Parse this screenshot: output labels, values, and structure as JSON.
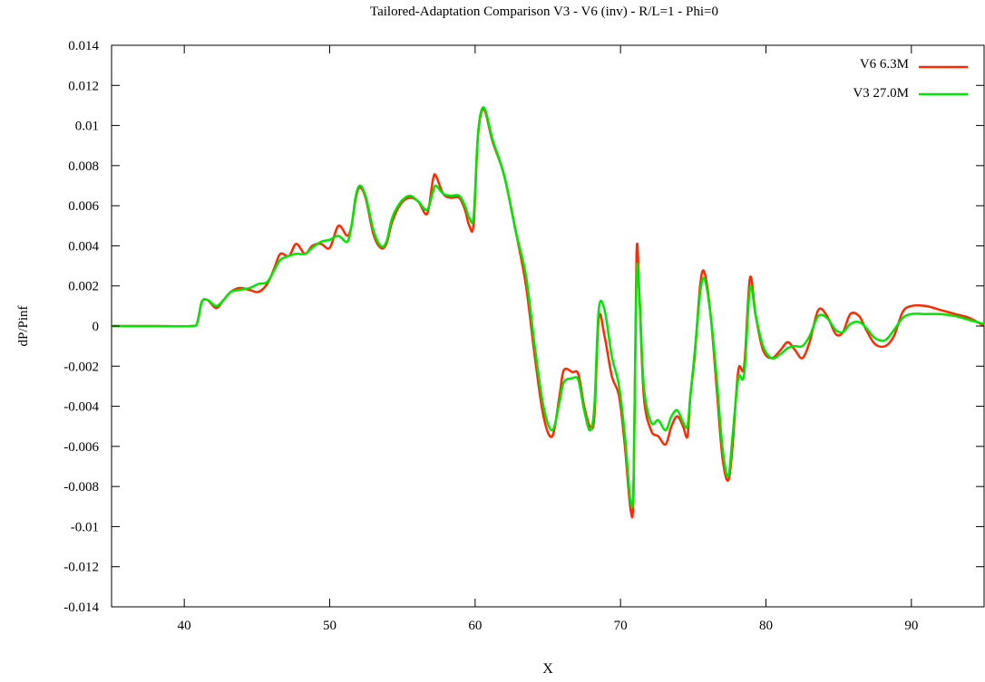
{
  "chart_data": {
    "type": "line",
    "title": "Tailored-Adaptation Comparison V3 - V6 (inv) - R/L=1 - Phi=0",
    "xlabel": "X",
    "ylabel": "dP/Pinf",
    "xlim": [
      35,
      95
    ],
    "ylim": [
      -0.014,
      0.014
    ],
    "xticks": [
      40,
      50,
      60,
      70,
      80,
      90
    ],
    "yticks": [
      -0.014,
      -0.012,
      -0.01,
      -0.008,
      -0.006,
      -0.004,
      -0.002,
      0,
      0.002,
      0.004,
      0.006,
      0.008,
      0.01,
      0.012,
      0.014
    ],
    "ytick_labels": [
      "-0.014",
      "-0.012",
      "-0.01",
      "-0.008",
      "-0.006",
      "-0.004",
      "-0.002",
      "0",
      "0.002",
      "0.004",
      "0.006",
      "0.008",
      "0.01",
      "0.012",
      "0.014"
    ],
    "grid": false,
    "legend_position": "top-right",
    "series": [
      {
        "name": "V6 6.3M",
        "color": "#ff2a00",
        "points": [
          [
            35,
            0
          ],
          [
            38,
            0
          ],
          [
            40.5,
            0
          ],
          [
            40.9,
            0.0002
          ],
          [
            41.2,
            0.0012
          ],
          [
            41.6,
            0.0013
          ],
          [
            42.2,
            0.0009
          ],
          [
            42.7,
            0.0013
          ],
          [
            43.2,
            0.0017
          ],
          [
            43.8,
            0.0019
          ],
          [
            44.5,
            0.0018
          ],
          [
            45.1,
            0.0017
          ],
          [
            45.7,
            0.0021
          ],
          [
            46.2,
            0.0029
          ],
          [
            46.6,
            0.0036
          ],
          [
            47.2,
            0.0035
          ],
          [
            47.7,
            0.0041
          ],
          [
            48.3,
            0.0036
          ],
          [
            48.8,
            0.004
          ],
          [
            49.4,
            0.0041
          ],
          [
            50,
            0.0039
          ],
          [
            50.6,
            0.005
          ],
          [
            51.2,
            0.0045
          ],
          [
            51.5,
            0.005
          ],
          [
            51.8,
            0.0064
          ],
          [
            52.1,
            0.0069
          ],
          [
            52.5,
            0.0063
          ],
          [
            53,
            0.0046
          ],
          [
            53.5,
            0.0039
          ],
          [
            53.9,
            0.0041
          ],
          [
            54.3,
            0.0052
          ],
          [
            54.9,
            0.0061
          ],
          [
            55.5,
            0.0064
          ],
          [
            56.1,
            0.0062
          ],
          [
            56.7,
            0.0056
          ],
          [
            57.1,
            0.0073
          ],
          [
            57.3,
            0.0075
          ],
          [
            57.8,
            0.0066
          ],
          [
            58.3,
            0.0064
          ],
          [
            58.9,
            0.0064
          ],
          [
            59.3,
            0.0058
          ],
          [
            59.6,
            0.005
          ],
          [
            59.9,
            0.0051
          ],
          [
            60.2,
            0.0095
          ],
          [
            60.6,
            0.0108
          ],
          [
            61.2,
            0.0092
          ],
          [
            62,
            0.0075
          ],
          [
            62.8,
            0.0047
          ],
          [
            63.5,
            0.002
          ],
          [
            64.1,
            -0.0015
          ],
          [
            64.7,
            -0.0045
          ],
          [
            65.3,
            -0.0055
          ],
          [
            65.8,
            -0.0035
          ],
          [
            66.1,
            -0.0022
          ],
          [
            66.7,
            -0.0023
          ],
          [
            67.1,
            -0.0024
          ],
          [
            67.5,
            -0.004
          ],
          [
            67.9,
            -0.005
          ],
          [
            68.2,
            -0.0045
          ],
          [
            68.5,
            0.0004
          ],
          [
            68.9,
            -0.0005
          ],
          [
            69.4,
            -0.0025
          ],
          [
            69.9,
            -0.0035
          ],
          [
            70.3,
            -0.006
          ],
          [
            70.7,
            -0.0092
          ],
          [
            70.9,
            -0.008
          ],
          [
            71.1,
            0.0036
          ],
          [
            71.3,
            0.0015
          ],
          [
            71.6,
            -0.0035
          ],
          [
            72.1,
            -0.0052
          ],
          [
            72.6,
            -0.0055
          ],
          [
            73.1,
            -0.0059
          ],
          [
            73.5,
            -0.005
          ],
          [
            73.9,
            -0.0045
          ],
          [
            74.3,
            -0.005
          ],
          [
            74.6,
            -0.0055
          ],
          [
            74.8,
            -0.0035
          ],
          [
            75.1,
            -0.0015
          ],
          [
            75.5,
            0.0022
          ],
          [
            75.8,
            0.0026
          ],
          [
            76.2,
            0.0005
          ],
          [
            76.6,
            -0.003
          ],
          [
            77,
            -0.0065
          ],
          [
            77.4,
            -0.0077
          ],
          [
            77.7,
            -0.006
          ],
          [
            78.1,
            -0.0022
          ],
          [
            78.5,
            -0.002
          ],
          [
            78.9,
            0.0024
          ],
          [
            79.3,
            0.0005
          ],
          [
            79.8,
            -0.0012
          ],
          [
            80.4,
            -0.0016
          ],
          [
            81,
            -0.0012
          ],
          [
            81.5,
            -0.0008
          ],
          [
            82,
            -0.0012
          ],
          [
            82.5,
            -0.0016
          ],
          [
            83,
            -0.0008
          ],
          [
            83.6,
            0.0008
          ],
          [
            84.2,
            0.0005
          ],
          [
            84.8,
            -0.0004
          ],
          [
            85.3,
            -0.0003
          ],
          [
            85.8,
            0.0006
          ],
          [
            86.4,
            0.0005
          ],
          [
            86.9,
            -0.0002
          ],
          [
            87.5,
            -0.0009
          ],
          [
            88.2,
            -0.001
          ],
          [
            88.8,
            -0.0005
          ],
          [
            89.4,
            0.0007
          ],
          [
            90,
            0.001
          ],
          [
            91,
            0.001
          ],
          [
            92,
            0.0008
          ],
          [
            93,
            0.0006
          ],
          [
            94,
            0.0004
          ],
          [
            95,
            0
          ]
        ]
      },
      {
        "name": "V3 27.0M",
        "color": "#00e600",
        "points": [
          [
            35,
            0
          ],
          [
            38,
            0
          ],
          [
            40.5,
            0
          ],
          [
            40.9,
            0.0002
          ],
          [
            41.2,
            0.0012
          ],
          [
            41.6,
            0.0013
          ],
          [
            42.2,
            0.001
          ],
          [
            42.7,
            0.0013
          ],
          [
            43.2,
            0.0017
          ],
          [
            43.8,
            0.0018
          ],
          [
            44.5,
            0.0019
          ],
          [
            45.1,
            0.0021
          ],
          [
            45.7,
            0.0022
          ],
          [
            46.2,
            0.0028
          ],
          [
            46.6,
            0.0033
          ],
          [
            47.2,
            0.0035
          ],
          [
            47.7,
            0.0036
          ],
          [
            48.3,
            0.0036
          ],
          [
            48.8,
            0.0039
          ],
          [
            49.4,
            0.0042
          ],
          [
            50,
            0.0043
          ],
          [
            50.6,
            0.0045
          ],
          [
            51.2,
            0.0042
          ],
          [
            51.5,
            0.005
          ],
          [
            51.8,
            0.0065
          ],
          [
            52.1,
            0.007
          ],
          [
            52.5,
            0.0064
          ],
          [
            53,
            0.0048
          ],
          [
            53.5,
            0.004
          ],
          [
            53.9,
            0.0042
          ],
          [
            54.3,
            0.0054
          ],
          [
            54.9,
            0.0062
          ],
          [
            55.5,
            0.0065
          ],
          [
            56.1,
            0.0062
          ],
          [
            56.7,
            0.0058
          ],
          [
            57.1,
            0.0067
          ],
          [
            57.3,
            0.007
          ],
          [
            57.8,
            0.0066
          ],
          [
            58.3,
            0.0065
          ],
          [
            58.9,
            0.0065
          ],
          [
            59.3,
            0.006
          ],
          [
            59.6,
            0.0054
          ],
          [
            59.9,
            0.0055
          ],
          [
            60.2,
            0.0096
          ],
          [
            60.6,
            0.0109
          ],
          [
            61.2,
            0.0093
          ],
          [
            62,
            0.0075
          ],
          [
            62.8,
            0.0047
          ],
          [
            63.5,
            0.0025
          ],
          [
            64.1,
            -0.001
          ],
          [
            64.7,
            -0.004
          ],
          [
            65.3,
            -0.0052
          ],
          [
            65.8,
            -0.0038
          ],
          [
            66.1,
            -0.0028
          ],
          [
            66.7,
            -0.0026
          ],
          [
            67.1,
            -0.0027
          ],
          [
            67.5,
            -0.0042
          ],
          [
            67.9,
            -0.0052
          ],
          [
            68.2,
            -0.004
          ],
          [
            68.5,
            0.0008
          ],
          [
            68.9,
            0.0008
          ],
          [
            69.4,
            -0.0015
          ],
          [
            69.9,
            -0.003
          ],
          [
            70.3,
            -0.0055
          ],
          [
            70.7,
            -0.0088
          ],
          [
            70.9,
            -0.0075
          ],
          [
            71.1,
            0.0025
          ],
          [
            71.3,
            0.0015
          ],
          [
            71.6,
            -0.003
          ],
          [
            72.1,
            -0.0048
          ],
          [
            72.6,
            -0.0047
          ],
          [
            73.1,
            -0.0052
          ],
          [
            73.5,
            -0.0045
          ],
          [
            73.9,
            -0.0042
          ],
          [
            74.3,
            -0.0048
          ],
          [
            74.6,
            -0.005
          ],
          [
            74.8,
            -0.0035
          ],
          [
            75.1,
            -0.0013
          ],
          [
            75.5,
            0.0018
          ],
          [
            75.8,
            0.0023
          ],
          [
            76.2,
            0.0005
          ],
          [
            76.6,
            -0.0025
          ],
          [
            77,
            -0.006
          ],
          [
            77.4,
            -0.0075
          ],
          [
            77.7,
            -0.0055
          ],
          [
            78.1,
            -0.0026
          ],
          [
            78.5,
            -0.0024
          ],
          [
            78.9,
            0.0019
          ],
          [
            79.3,
            0.0005
          ],
          [
            79.8,
            -0.001
          ],
          [
            80.4,
            -0.0016
          ],
          [
            81,
            -0.0014
          ],
          [
            81.5,
            -0.0011
          ],
          [
            82,
            -0.001
          ],
          [
            82.5,
            -0.001
          ],
          [
            83,
            -0.0005
          ],
          [
            83.6,
            0.0005
          ],
          [
            84.2,
            0.0004
          ],
          [
            84.8,
            -0.0002
          ],
          [
            85.3,
            -0.0003
          ],
          [
            85.8,
            0.0001
          ],
          [
            86.4,
            0.0002
          ],
          [
            86.9,
            -0.0001
          ],
          [
            87.5,
            -0.0006
          ],
          [
            88.2,
            -0.0007
          ],
          [
            88.8,
            -0.0002
          ],
          [
            89.4,
            0.0004
          ],
          [
            90,
            0.0006
          ],
          [
            91,
            0.0006
          ],
          [
            92,
            0.0006
          ],
          [
            93,
            0.0005
          ],
          [
            94,
            0.0003
          ],
          [
            95,
            0.0001
          ]
        ]
      }
    ]
  }
}
